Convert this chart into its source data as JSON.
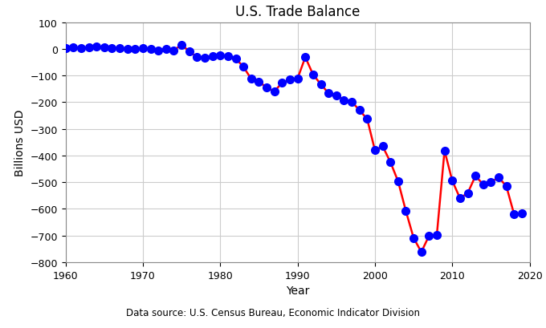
{
  "title": "U.S. Trade Balance",
  "xlabel": "Year",
  "ylabel": "Billions USD",
  "source": "Data source: U.S. Census Bureau, Economic Indicator Division",
  "line_color": "red",
  "marker_color": "blue",
  "marker_size": 7,
  "line_width": 1.8,
  "background_color": "white",
  "grid_color": "#cccccc",
  "xlim": [
    1960,
    2020
  ],
  "ylim": [
    -800,
    100
  ],
  "xticks": [
    1960,
    1970,
    1980,
    1990,
    2000,
    2010,
    2020
  ],
  "yticks": [
    100,
    0,
    -100,
    -200,
    -300,
    -400,
    -500,
    -600,
    -700,
    -800
  ],
  "years": [
    1960,
    1961,
    1962,
    1963,
    1964,
    1965,
    1966,
    1967,
    1968,
    1969,
    1970,
    1971,
    1972,
    1973,
    1974,
    1975,
    1976,
    1977,
    1978,
    1979,
    1980,
    1981,
    1982,
    1983,
    1984,
    1985,
    1986,
    1987,
    1988,
    1989,
    1990,
    1991,
    1992,
    1993,
    1994,
    1995,
    1996,
    1997,
    1998,
    1999,
    2000,
    2001,
    2002,
    2003,
    2004,
    2005,
    2006,
    2007,
    2008,
    2009,
    2010,
    2011,
    2012,
    2013,
    2014,
    2015,
    2016,
    2017,
    2018,
    2019
  ],
  "values": [
    3.5,
    5.6,
    4.2,
    5.2,
    8.5,
    5.4,
    3.8,
    4.0,
    -0.6,
    0.6,
    2.6,
    -1.3,
    -6.4,
    0.9,
    -5.5,
    16.0,
    -9.5,
    -31.1,
    -33.9,
    -27.3,
    -25.5,
    -28.0,
    -36.4,
    -67.1,
    -112.5,
    -122.2,
    -145.1,
    -159.6,
    -126.7,
    -115.7,
    -111.0,
    -31.1,
    -96.1,
    -132.4,
    -166.1,
    -173.6,
    -191.2,
    -198.0,
    -229.7,
    -263.2,
    -379.8,
    -365.1,
    -424.4,
    -496.9,
    -607.7,
    -708.7,
    -761.7,
    -700.3,
    -698.8,
    -381.3,
    -494.7,
    -559.8,
    -540.4,
    -476.4,
    -508.3,
    -500.0,
    -481.2,
    -515.7,
    -621.0,
    -616.8
  ]
}
